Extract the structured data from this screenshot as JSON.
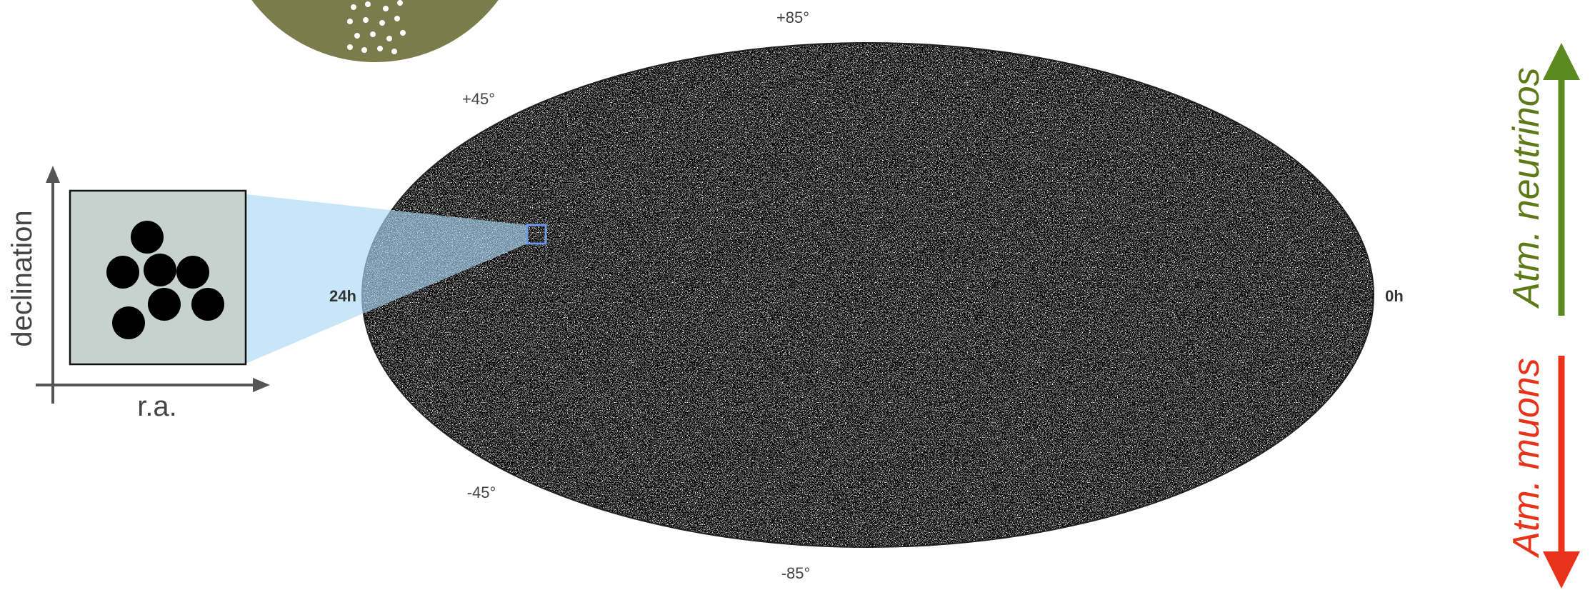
{
  "sky_map": {
    "dec_labels": [
      "+85°",
      "+45°",
      "-45°",
      "-85°"
    ],
    "ra_left": "24h",
    "ra_right": "0h"
  },
  "inset": {
    "y_axis": "declination",
    "x_axis": "r.a."
  },
  "arrows": {
    "up": "Atm. neutrinos",
    "down": "Atm. muons"
  }
}
